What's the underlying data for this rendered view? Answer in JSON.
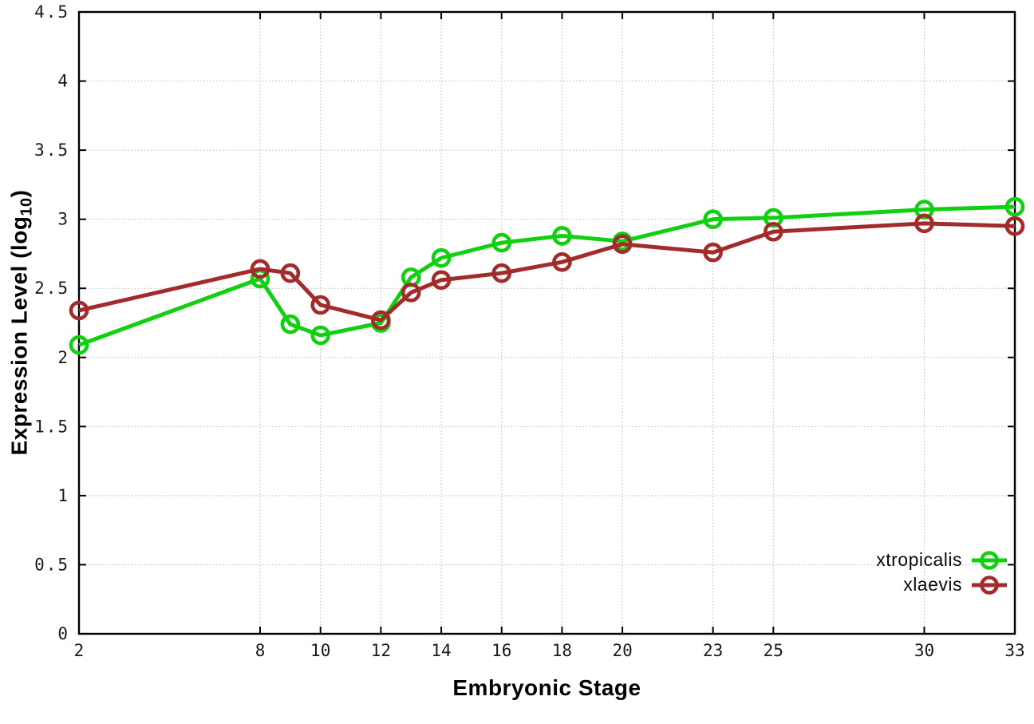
{
  "chart_data": {
    "type": "line",
    "title": "",
    "xlabel": "Embryonic Stage",
    "ylabel": "Expression Level (log10)",
    "ylabel_parts": {
      "pre": "Expression Level (log",
      "sub": "10",
      "post": ")"
    },
    "xlim": [
      2,
      33
    ],
    "ylim": [
      0,
      4.5
    ],
    "xticks": [
      2,
      8,
      10,
      12,
      14,
      16,
      18,
      20,
      23,
      25,
      30,
      33
    ],
    "xtick_labels": [
      "2",
      "8",
      "10",
      "12",
      "14",
      "16",
      "18",
      "20",
      "23",
      "25",
      "30",
      "33"
    ],
    "yticks": [
      0,
      0.5,
      1,
      1.5,
      2,
      2.5,
      3,
      3.5,
      4,
      4.5
    ],
    "ytick_labels": [
      "0",
      "0.5",
      "1",
      "1.5",
      "2",
      "2.5",
      "3",
      "3.5",
      "4",
      "4.5"
    ],
    "grid": true,
    "legend_position": "inside-bottom-right",
    "x": [
      2,
      8,
      9,
      10,
      12,
      13,
      14,
      16,
      18,
      20,
      23,
      25,
      30,
      33
    ],
    "series": [
      {
        "name": "xtropicalis",
        "color": "#10d010",
        "values": [
          2.09,
          2.57,
          2.24,
          2.16,
          2.25,
          2.58,
          2.72,
          2.83,
          2.88,
          2.84,
          3.0,
          3.01,
          3.07,
          3.09
        ]
      },
      {
        "name": "xlaevis",
        "color": "#a32b2b",
        "values": [
          2.34,
          2.64,
          2.61,
          2.38,
          2.27,
          2.47,
          2.56,
          2.61,
          2.69,
          2.82,
          2.76,
          2.91,
          2.97,
          2.95
        ]
      }
    ]
  },
  "style_colors": {
    "grid": "#b8b8b8",
    "axis": "#000000",
    "tick_text": "#1a1a1a",
    "background": "#ffffff"
  }
}
